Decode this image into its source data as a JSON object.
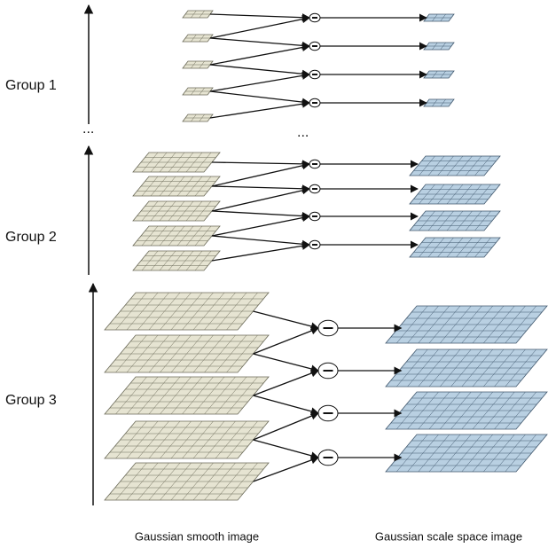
{
  "groups": [
    {
      "label": "Group 1"
    },
    {
      "label": "Group 2"
    },
    {
      "label": "Group 3"
    }
  ],
  "separators": [
    "...",
    "..."
  ],
  "captions": {
    "left": "Gaussian smooth image",
    "right": "Gaussian scale space image"
  }
}
